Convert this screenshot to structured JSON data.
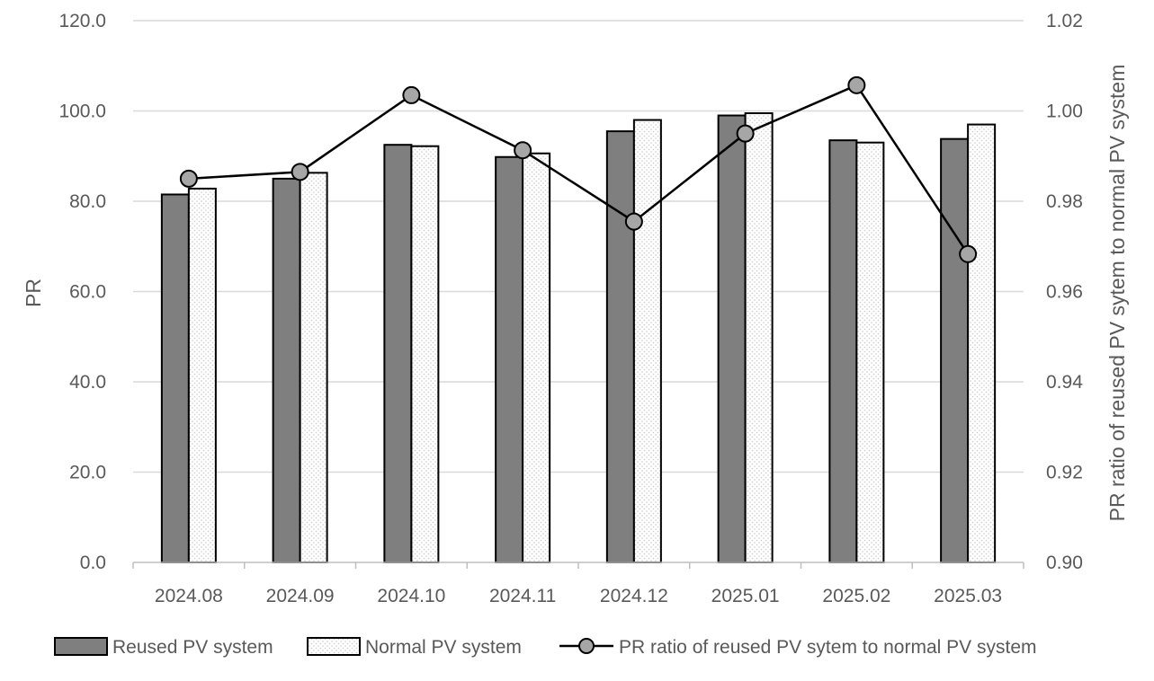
{
  "chart_data": {
    "type": "bar",
    "categories": [
      "2024.08",
      "2024.09",
      "2024.10",
      "2024.11",
      "2024.12",
      "2025.01",
      "2025.02",
      "2025.03"
    ],
    "series": [
      {
        "name": "Reused PV system",
        "type": "bar",
        "axis": "left",
        "color": "#7f7f7f",
        "values": [
          81.5,
          85.0,
          92.5,
          89.8,
          95.5,
          99.0,
          93.5,
          93.8
        ]
      },
      {
        "name": "Normal PV system",
        "type": "bar",
        "axis": "left",
        "color": "#f2f2f2",
        "pattern": "dotted",
        "values": [
          82.8,
          86.3,
          92.2,
          90.6,
          98.0,
          99.5,
          93.0,
          97.0
        ]
      },
      {
        "name": "PR ratio of reused PV sytem to normal PV system",
        "type": "line",
        "axis": "right",
        "color": "#000000",
        "marker_color": "#a6a6a6",
        "values": [
          0.985,
          0.9865,
          1.0035,
          0.9913,
          0.9755,
          0.995,
          1.0057,
          0.9683
        ]
      }
    ],
    "ylabel": "PR",
    "y2label": "PR ratio of reused PV sytem to normal PV system",
    "ylim": [
      0,
      120
    ],
    "y2lim": [
      0.9,
      1.02
    ],
    "yticks": [
      "0.0",
      "20.0",
      "40.0",
      "60.0",
      "80.0",
      "100.0",
      "120.0"
    ],
    "y2ticks": [
      "0.90",
      "0.92",
      "0.94",
      "0.96",
      "0.98",
      "1.00",
      "1.02"
    ],
    "grid": true,
    "legend_position": "bottom"
  }
}
